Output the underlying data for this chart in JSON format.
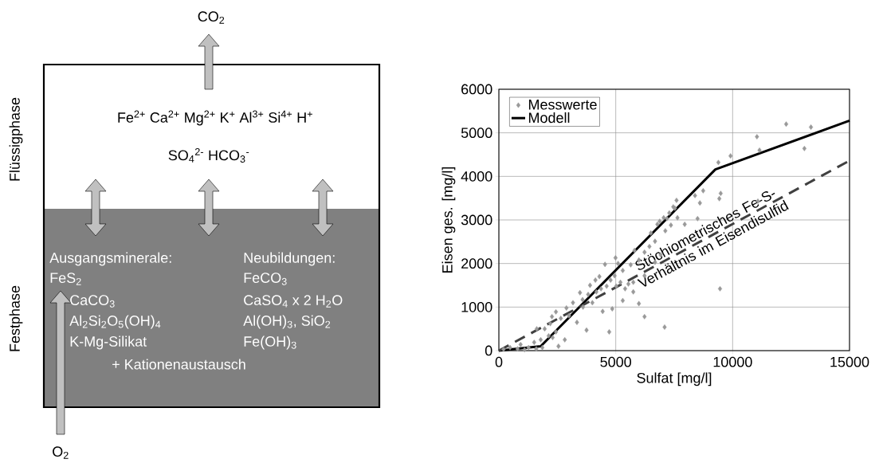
{
  "chart_data": [
    {
      "type": "other",
      "annotations": [
        "CO$_{2}$",
        "Flüssigphase",
        "Fe$^{2+}$  Ca$^{2+}$  Mg$^{2+}$  K$^{+}$  Al$^{3+}$  Si$^{4+}$  H$^{+}$",
        "SO$_{4}$$^{2-}$  HCO$_{3}$$^{-}$",
        "Festphase",
        "Ausgangsminerale:",
        "FeS$_{2}$",
        "CaCO$_{3}$",
        "Al$_{2}$Si$_{2}$O$_{5}$(OH)$_{4}$",
        "K-Mg-Silikat",
        "+ Kationenaustausch",
        "Neubildungen:",
        "FeCO$_{3}$",
        "CaSO$_{4}$ x 2 H$_{2}$O",
        "Al(OH)$_{3}$, SiO$_{2}$",
        "Fe(OH)$_{3}$",
        "O$_{2}$"
      ]
    },
    {
      "type": "scatter",
      "xlabel": "Sulfat [mg/l]",
      "ylabel": "Eisen ges. [mg/l]",
      "xlim": [
        0,
        15000
      ],
      "ylim": [
        0,
        6000
      ],
      "xticks": [
        0,
        5000,
        10000,
        15000
      ],
      "yticks": [
        0,
        1000,
        2000,
        3000,
        4000,
        5000,
        6000
      ],
      "grid": true,
      "legend": "top left",
      "series": [
        {
          "name": "Messwerte",
          "type": "scatter",
          "color": "#999999",
          "marker": "diamond",
          "x": [
            200,
            480,
            800,
            930,
            1100,
            1270,
            1510,
            1600,
            1620,
            1790,
            1860,
            1960,
            2130,
            2200,
            2270,
            2300,
            2440,
            2440,
            2550,
            2650,
            2820,
            2890,
            3000,
            3170,
            3340,
            3470,
            3580,
            3600,
            3750,
            3820,
            3900,
            4000,
            4130,
            4170,
            4300,
            4370,
            4440,
            4540,
            4610,
            4720,
            4780,
            4850,
            4950,
            4990,
            5020,
            5100,
            5200,
            5300,
            5300,
            5400,
            5540,
            5640,
            5750,
            5750,
            5800,
            5990,
            5990,
            6230,
            6230,
            6230,
            6440,
            6500,
            6680,
            6680,
            6780,
            6880,
            6920,
            7050,
            7090,
            7120,
            7190,
            7290,
            7360,
            7460,
            7530,
            7600,
            7640,
            7950,
            8390,
            8500,
            8600,
            8740,
            9390,
            9430,
            9460,
            9490,
            9910,
            11040,
            11080,
            11150,
            12290,
            13070,
            13350
          ],
          "values": [
            30,
            70,
            40,
            140,
            20,
            70,
            190,
            40,
            500,
            250,
            70,
            500,
            340,
            620,
            780,
            300,
            890,
            430,
            100,
            740,
            250,
            980,
            800,
            1100,
            650,
            1330,
            1170,
            1000,
            470,
            1290,
            1500,
            1100,
            1620,
            1350,
            1700,
            1420,
            900,
            1980,
            1480,
            430,
            1620,
            960,
            1720,
            2130,
            1480,
            2000,
            1570,
            1150,
            1840,
            1420,
            1530,
            1970,
            1570,
            1350,
            2300,
            1080,
            2080,
            780,
            1720,
            2260,
            2390,
            2700,
            2030,
            2510,
            2900,
            2970,
            2200,
            3050,
            540,
            2750,
            3030,
            3160,
            2880,
            3300,
            3270,
            3450,
            3050,
            2900,
            3560,
            3030,
            3390,
            3670,
            4320,
            3490,
            1420,
            3610,
            4470,
            4910,
            3430,
            4600,
            5200,
            4640,
            5130
          ]
        },
        {
          "name": "Modell",
          "type": "line",
          "color": "#000000",
          "line_style": "solid",
          "x": [
            0,
            1790,
            9260,
            15000
          ],
          "values": [
            0,
            100,
            4160,
            5280
          ]
        },
        {
          "name": "Stöchiometrisches Fe-S- Verhältnis im Eisendisulfid",
          "type": "line",
          "color": "#404040",
          "line_style": "dashed",
          "x": [
            0,
            15000
          ],
          "values": [
            0,
            4360
          ]
        }
      ]
    }
  ]
}
